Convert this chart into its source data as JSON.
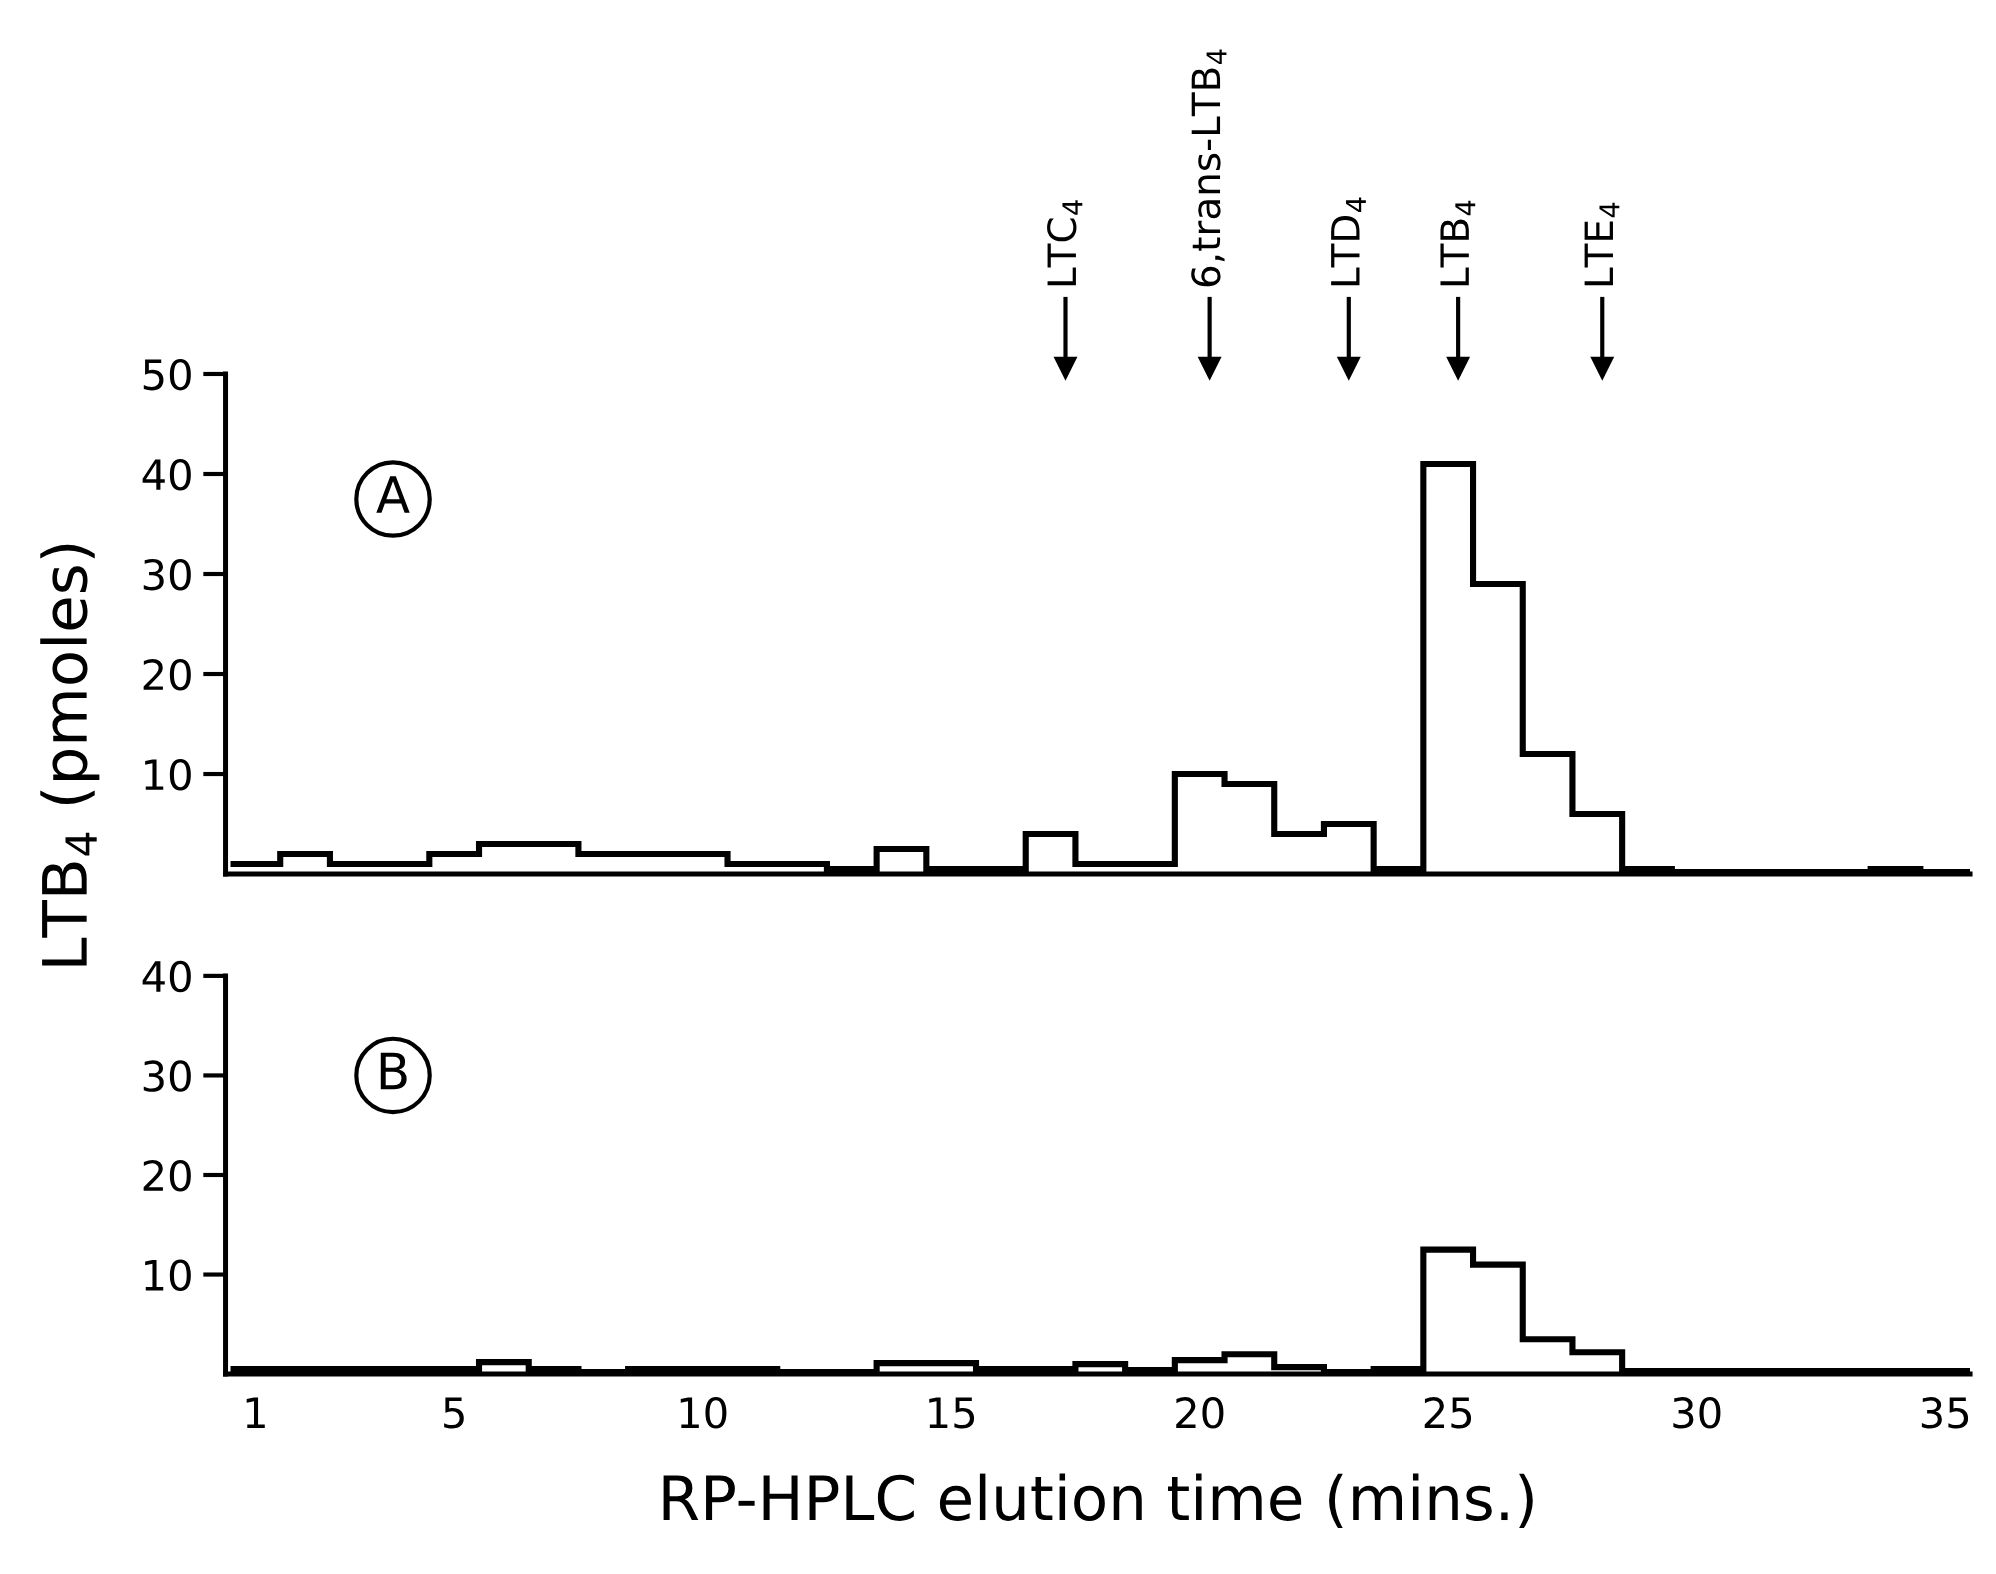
{
  "chart_data": [
    {
      "type": "histogram",
      "ylabel": "LTB$_{4}$ (pmoles)",
      "bins": [
        0.5,
        1.5,
        2.5,
        3.5,
        4.5,
        5.5,
        6.5,
        7.5,
        8.5,
        9.5,
        10.5,
        11.5,
        12.5,
        13.5,
        14.5,
        15.5,
        16.5,
        17.5,
        18.5,
        19.5,
        20.5,
        21.5,
        22.5,
        23.5,
        24.5,
        25.5,
        26.5,
        27.5,
        28.5,
        29.5,
        30.5,
        31.5,
        32.5,
        33.5,
        34.5,
        35.5
      ],
      "values": [
        1,
        2,
        1,
        1,
        2,
        3,
        3,
        2,
        2,
        2,
        1,
        1,
        0.5,
        2.5,
        0.5,
        0.5,
        4,
        1,
        1,
        10,
        9,
        4,
        5,
        0.5,
        41,
        29,
        12,
        6,
        0.5,
        0.2,
        0.2,
        0.2,
        0.2,
        0.5,
        0.2
      ],
      "color": "#000000",
      "xlim": [
        0.4,
        35.5
      ],
      "ylim": [
        0,
        50
      ],
      "yticks": [
        10,
        20,
        30,
        40,
        50
      ],
      "tick_labels": "y",
      "annotations": [
        "A"
      ],
      "ref_lines": [
        {
          "axis": "x",
          "value": 17.3,
          "label": "LTC$_{4}$"
        },
        {
          "axis": "x",
          "value": 20.2,
          "label": "6,trans-LTB$_{4}$"
        },
        {
          "axis": "x",
          "value": 23.0,
          "label": "LTD$_{4}$"
        },
        {
          "axis": "x",
          "value": 25.2,
          "label": "LTB$_{4}$"
        },
        {
          "axis": "x",
          "value": 28.1,
          "label": "LTE$_{4}$"
        }
      ]
    },
    {
      "type": "histogram",
      "xlabel": "RP-HPLC elution time (mins.)",
      "bins": [
        0.5,
        1.5,
        2.5,
        3.5,
        4.5,
        5.5,
        6.5,
        7.5,
        8.5,
        9.5,
        10.5,
        11.5,
        12.5,
        13.5,
        14.5,
        15.5,
        16.5,
        17.5,
        18.5,
        19.5,
        20.5,
        21.5,
        22.5,
        23.5,
        24.5,
        25.5,
        26.5,
        27.5,
        28.5,
        29.5,
        30.5,
        31.5,
        32.5,
        33.5,
        34.5,
        35.5
      ],
      "values": [
        0.5,
        0.5,
        0.5,
        0.5,
        0.5,
        1.2,
        0.5,
        0.2,
        0.5,
        0.5,
        0.5,
        0.2,
        0.2,
        1.1,
        1.1,
        0.5,
        0.5,
        1,
        0.4,
        1.4,
        2,
        0.7,
        0.2,
        0.5,
        12.5,
        11,
        3.5,
        2.2,
        0.3,
        0.3,
        0.3,
        0.3,
        0.3,
        0.3,
        0.3
      ],
      "color": "#000000",
      "xlim": [
        0.4,
        35.5
      ],
      "xticks": [
        1,
        5,
        10,
        15,
        20,
        25,
        30,
        35
      ],
      "ylim": [
        0,
        40
      ],
      "yticks": [
        10,
        20,
        30,
        40
      ],
      "annotations": [
        "B"
      ]
    }
  ]
}
